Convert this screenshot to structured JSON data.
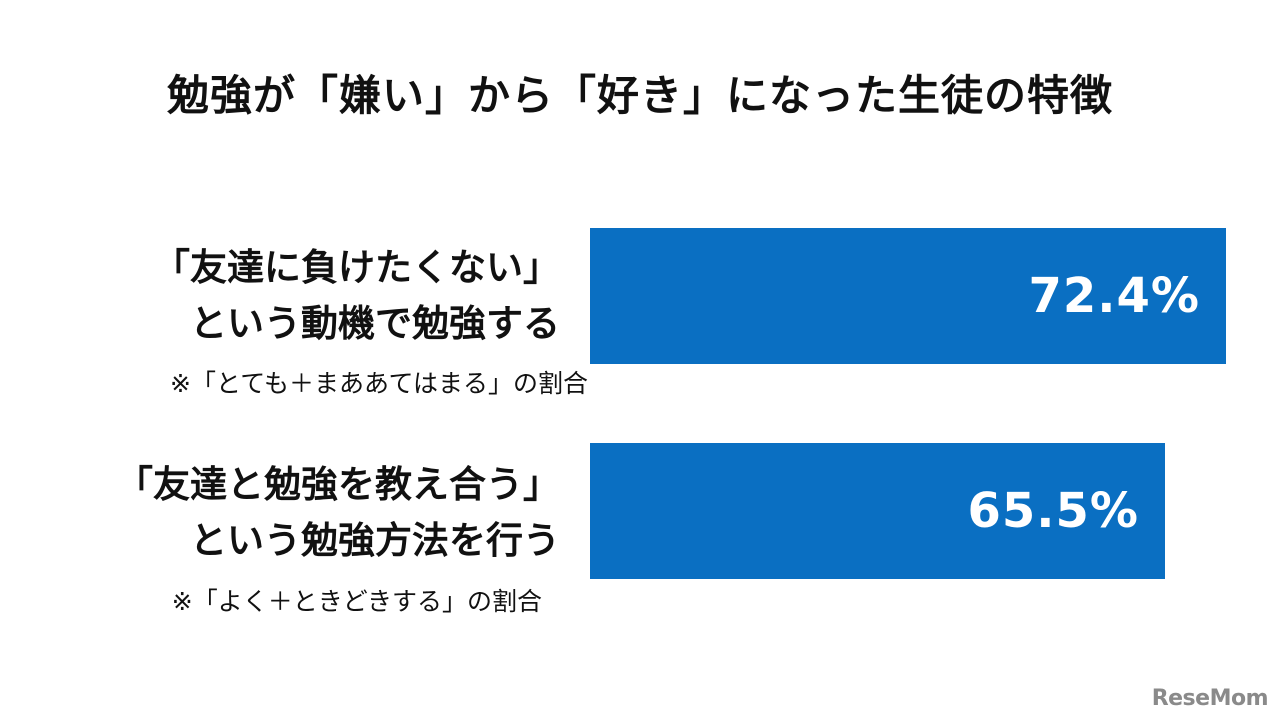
{
  "chart_data": {
    "type": "bar",
    "orientation": "horizontal",
    "title": "勉強が「嫌い」から「好き」になった生徒の特徴",
    "categories": [
      "「友達に負けたくない」という動機で勉強する",
      "「友達と勉強を教え合う」という勉強方法を行う"
    ],
    "category_lines": [
      [
        "「友達に負けたくない」",
        "という動機で勉強する"
      ],
      [
        "「友達と勉強を教え合う」",
        "という勉強方法を行う"
      ]
    ],
    "notes": [
      "※「とても＋まああてはまる」の割合",
      "※「よく＋ときどきする」の割合"
    ],
    "values": [
      72.4,
      65.5
    ],
    "value_labels": [
      "72.4%",
      "65.5%"
    ],
    "unit": "%",
    "bar_color": "#0a6fc2",
    "axis_visible": false,
    "grid": false,
    "legend": "none"
  },
  "logo": {
    "text": "ReseMom"
  }
}
